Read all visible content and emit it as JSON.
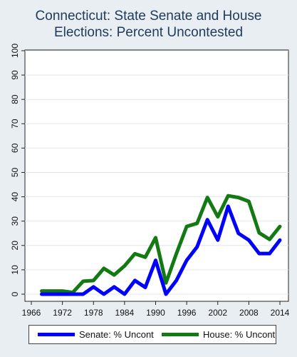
{
  "chart_data": {
    "type": "line",
    "title": [
      "Connecticut: State Senate and House",
      "Elections: Percent Uncontested"
    ],
    "xlabel": "",
    "ylabel": "",
    "xlim": [
      1966,
      2014
    ],
    "ylim": [
      0,
      100
    ],
    "x_ticks": [
      1966,
      1972,
      1978,
      1984,
      1990,
      1996,
      2002,
      2008,
      2014
    ],
    "y_ticks": [
      0,
      10,
      20,
      30,
      40,
      50,
      60,
      70,
      80,
      90,
      100
    ],
    "grid": "horizontal",
    "legend_position": "bottom",
    "series": [
      {
        "name": "Senate: % Uncont",
        "color": "#0000ff",
        "x": [
          1968,
          1970,
          1972,
          1974,
          1976,
          1978,
          1980,
          1982,
          1984,
          1986,
          1988,
          1990,
          1992,
          1994,
          1996,
          1998,
          2000,
          2002,
          2004,
          2006,
          2008,
          2010,
          2012,
          2014
        ],
        "values": [
          0,
          0,
          0,
          0,
          0,
          3,
          0,
          3,
          0,
          5.6,
          2.8,
          13.9,
          0,
          5.6,
          13.9,
          19.4,
          30.6,
          22.2,
          36.1,
          25,
          22.2,
          16.7,
          16.7,
          22.2
        ]
      },
      {
        "name": "House: % Uncont",
        "color": "#137a13",
        "x": [
          1968,
          1970,
          1972,
          1974,
          1976,
          1978,
          1980,
          1982,
          1984,
          1986,
          1988,
          1990,
          1992,
          1994,
          1996,
          1998,
          2000,
          2002,
          2004,
          2006,
          2008,
          2010,
          2012,
          2014
        ],
        "values": [
          1.3,
          1.3,
          1.3,
          0.7,
          5.3,
          5.6,
          10.6,
          7.9,
          11.6,
          16.6,
          15.2,
          23.2,
          4.6,
          16.6,
          27.8,
          29.1,
          39.7,
          31.8,
          40.4,
          39.7,
          38.1,
          25.2,
          22.5,
          27.8
        ]
      }
    ]
  }
}
